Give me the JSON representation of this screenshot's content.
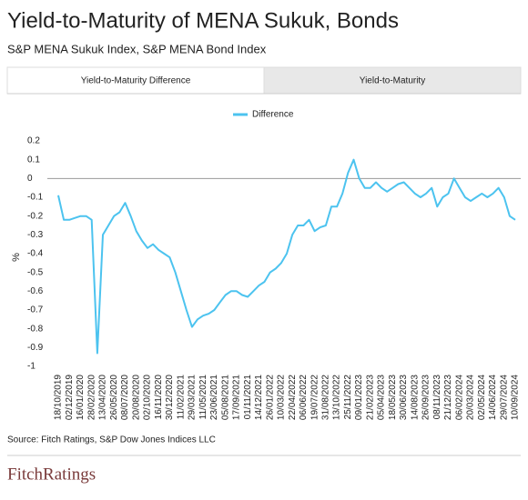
{
  "title": "Yield-to-Maturity of MENA Sukuk, Bonds",
  "subtitle": "S&P MENA Sukuk Index, S&P MENA Bond Index",
  "tabs": [
    "Yield-to-Maturity Difference",
    "Yield-to-Maturity"
  ],
  "chart_data": {
    "type": "line",
    "y_label": "%",
    "categories": [
      "18/10/2019",
      null,
      "02/12/2019",
      null,
      "16/01/2020",
      null,
      "28/02/2020",
      null,
      "13/04/2020",
      null,
      "26/05/2020",
      null,
      "08/07/2020",
      null,
      "20/08/2020",
      null,
      "02/10/2020",
      null,
      "16/11/2020",
      null,
      "30/12/2020",
      null,
      "11/02/2021",
      null,
      "29/03/2021",
      null,
      "11/05/2021",
      null,
      "23/06/2021",
      null,
      "05/08/2021",
      null,
      "17/09/2021",
      null,
      "01/11/2021",
      null,
      "14/12/2021",
      null,
      "26/01/2022",
      null,
      "10/03/2022",
      null,
      "22/04/2022",
      null,
      "06/06/2022",
      null,
      "19/07/2022",
      null,
      "31/08/2022",
      null,
      "13/10/2022",
      null,
      "25/11/2022",
      null,
      "09/01/2023",
      null,
      "21/02/2023",
      null,
      "05/04/2023",
      null,
      "18/05/2023",
      null,
      "30/06/2023",
      null,
      "14/08/2023",
      null,
      "26/09/2023",
      null,
      "08/11/2023",
      null,
      "21/12/2023",
      null,
      "06/02/2024",
      null,
      "20/03/2024",
      null,
      "02/05/2024",
      null,
      "14/06/2024",
      null,
      "29/07/2024",
      null,
      "10/09/2024"
    ],
    "series": [
      {
        "name": "Difference",
        "color": "#4cc3ef",
        "values": [
          -0.09,
          -0.22,
          -0.22,
          -0.21,
          -0.2,
          -0.2,
          -0.22,
          -0.93,
          -0.3,
          -0.25,
          -0.2,
          -0.18,
          -0.13,
          -0.2,
          -0.28,
          -0.33,
          -0.37,
          -0.35,
          -0.38,
          -0.4,
          -0.42,
          -0.5,
          -0.6,
          -0.7,
          -0.79,
          -0.75,
          -0.73,
          -0.72,
          -0.7,
          -0.66,
          -0.62,
          -0.6,
          -0.6,
          -0.62,
          -0.63,
          -0.6,
          -0.57,
          -0.55,
          -0.5,
          -0.48,
          -0.45,
          -0.4,
          -0.3,
          -0.25,
          -0.25,
          -0.22,
          -0.28,
          -0.26,
          -0.25,
          -0.15,
          -0.15,
          -0.08,
          0.03,
          0.1,
          0.0,
          -0.05,
          -0.05,
          -0.02,
          -0.05,
          -0.07,
          -0.05,
          -0.03,
          -0.02,
          -0.05,
          -0.08,
          -0.1,
          -0.08,
          -0.05,
          -0.15,
          -0.1,
          -0.08,
          0.0,
          -0.05,
          -0.1,
          -0.12,
          -0.1,
          -0.08,
          -0.1,
          -0.08,
          -0.05,
          -0.1,
          -0.2,
          -0.22
        ]
      }
    ],
    "ylim": [
      -1,
      0.2
    ],
    "yticks": [
      0.2,
      0.1,
      0,
      -0.1,
      -0.2,
      -0.3,
      -0.4,
      -0.5,
      -0.6,
      -0.7,
      -0.8,
      -0.9,
      -1
    ],
    "zero_line": true
  },
  "source": "Source: Fitch Ratings, S&P Dow Jones Indices LLC",
  "logo": "FitchRatings"
}
